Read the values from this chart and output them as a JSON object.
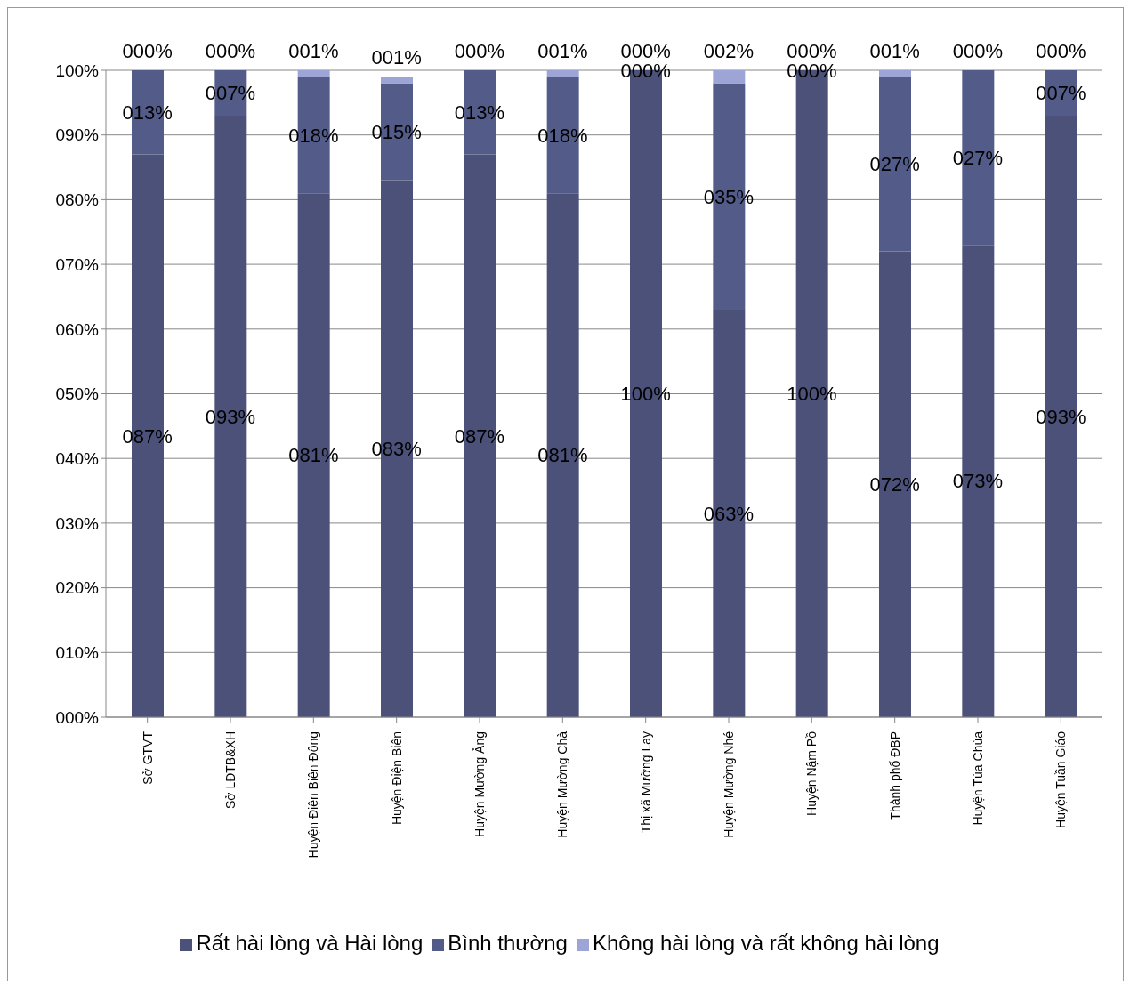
{
  "chart_data": {
    "type": "bar",
    "stacked": true,
    "categories": [
      "Sở GTVT",
      "Sở LĐTB&XH",
      "Huyện Điện Biên Đông",
      "Huyện Điện Biên",
      "Huyện Mường Ảng",
      "Huyện Mường Chà",
      "Thị xã Mường Lay",
      "Huyện Mường Nhé",
      "Huyện Nậm Pồ",
      "Thành phố ĐBP",
      "Huyện Tủa Chùa",
      "Huyện Tuần Giáo"
    ],
    "series": [
      {
        "name": "Rất hài lòng và Hài lòng",
        "color": "#4b5178",
        "values": [
          87,
          93,
          81,
          83,
          87,
          81,
          100,
          63,
          100,
          72,
          73,
          93
        ],
        "value_labels": [
          "087%",
          "093%",
          "081%",
          "083%",
          "087%",
          "081%",
          "100%",
          "063%",
          "100%",
          "072%",
          "073%",
          "093%"
        ]
      },
      {
        "name": "Bình thường",
        "color": "#535c88",
        "values": [
          13,
          7,
          18,
          15,
          13,
          18,
          0,
          35,
          0,
          27,
          27,
          7
        ],
        "value_labels": [
          "013%",
          "007%",
          "018%",
          "015%",
          "013%",
          "018%",
          "000%",
          "035%",
          "000%",
          "027%",
          "027%",
          "007%"
        ]
      },
      {
        "name": "Không hài lòng và rất không hài lòng",
        "color": "#9ca5d6",
        "values": [
          0,
          0,
          1,
          1,
          0,
          1,
          0,
          2,
          0,
          1,
          0,
          0
        ],
        "value_labels": [
          "000%",
          "000%",
          "001%",
          "001%",
          "000%",
          "001%",
          "000%",
          "002%",
          "000%",
          "001%",
          "000%",
          "000%"
        ]
      }
    ],
    "ylim": [
      0,
      100
    ],
    "yticks": [
      {
        "value": 0,
        "label": "000%"
      },
      {
        "value": 10,
        "label": "010%"
      },
      {
        "value": 20,
        "label": "020%"
      },
      {
        "value": 30,
        "label": "030%"
      },
      {
        "value": 40,
        "label": "040%"
      },
      {
        "value": 50,
        "label": "050%"
      },
      {
        "value": 60,
        "label": "060%"
      },
      {
        "value": 70,
        "label": "070%"
      },
      {
        "value": 80,
        "label": "080%"
      },
      {
        "value": 90,
        "label": "090%"
      },
      {
        "value": 100,
        "label": "100%"
      }
    ],
    "grid": "y",
    "legend": "bottom"
  }
}
